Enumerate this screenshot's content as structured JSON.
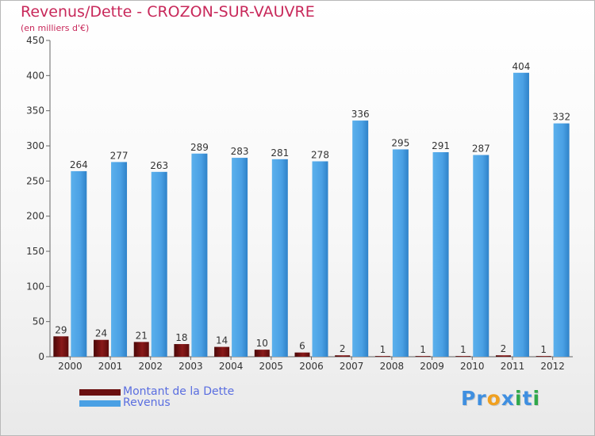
{
  "title": "Revenus/Dette - CROZON-SUR-VAUVRE",
  "subtitle": "(en milliers d'€)",
  "logo": {
    "text": "Proxiti",
    "letters": [
      {
        "ch": "P",
        "color": "#3f8fe0"
      },
      {
        "ch": "r",
        "color": "#3f8fe0"
      },
      {
        "ch": "o",
        "color": "#f0a020"
      },
      {
        "ch": "x",
        "color": "#3f8fe0"
      },
      {
        "ch": "i",
        "color": "#2fa84a"
      },
      {
        "ch": "t",
        "color": "#3f8fe0"
      },
      {
        "ch": "i",
        "color": "#2fa84a"
      }
    ]
  },
  "chart_data": {
    "type": "bar",
    "categories": [
      "2000",
      "2001",
      "2002",
      "2003",
      "2004",
      "2005",
      "2006",
      "2007",
      "2008",
      "2009",
      "2010",
      "2011",
      "2012"
    ],
    "series": [
      {
        "name": "Montant de la Dette",
        "color": "#6b0f0f",
        "values": [
          29,
          24,
          21,
          18,
          14,
          10,
          6,
          2,
          1,
          1,
          1,
          2,
          1
        ]
      },
      {
        "name": "Revenus",
        "color": "#4aa0e4",
        "values": [
          264,
          277,
          263,
          289,
          283,
          281,
          278,
          336,
          295,
          291,
          287,
          404,
          332
        ]
      }
    ],
    "ylim": [
      0,
      450
    ],
    "yticks": [
      0,
      50,
      100,
      150,
      200,
      250,
      300,
      350,
      400,
      450
    ],
    "grid": false,
    "legend_position": "bottom-left"
  }
}
